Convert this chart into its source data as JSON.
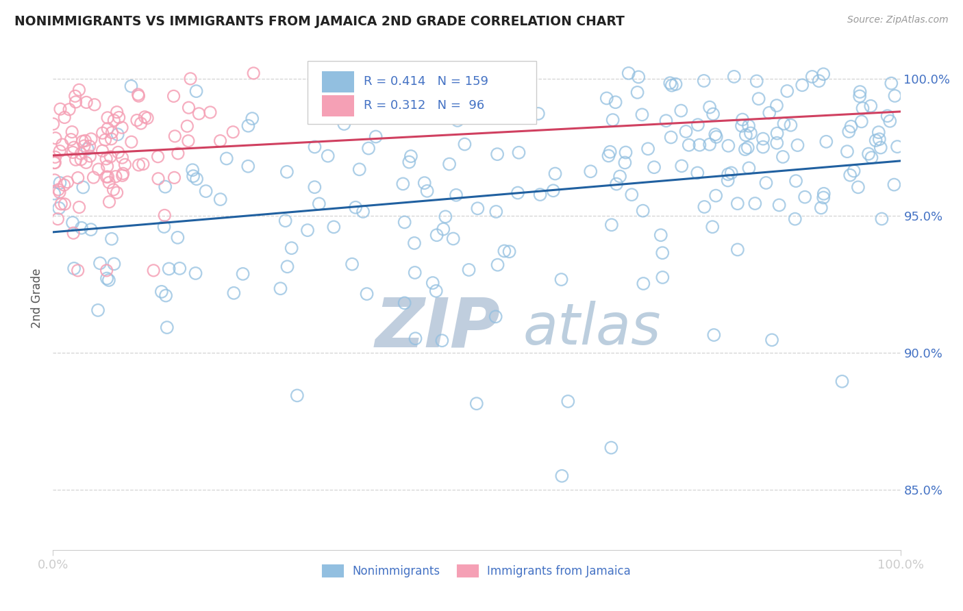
{
  "title": "NONIMMIGRANTS VS IMMIGRANTS FROM JAMAICA 2ND GRADE CORRELATION CHART",
  "source_text": "Source: ZipAtlas.com",
  "ylabel": "2nd Grade",
  "x_tick_labels": [
    "0.0%",
    "100.0%"
  ],
  "y_tick_labels": [
    "85.0%",
    "90.0%",
    "95.0%",
    "100.0%"
  ],
  "y_tick_values": [
    0.85,
    0.9,
    0.95,
    1.0
  ],
  "xlim": [
    0.0,
    1.0
  ],
  "ylim": [
    0.828,
    1.012
  ],
  "R_blue": 0.414,
  "N_blue": 159,
  "R_pink": 0.312,
  "N_pink": 96,
  "blue_color": "#92BFE0",
  "pink_color": "#F5A0B5",
  "blue_line_color": "#2060A0",
  "pink_line_color": "#D04060",
  "watermark_zip_color": "#C0CEDE",
  "watermark_atlas_color": "#BCCEDE",
  "legend_label_blue": "Nonimmigrants",
  "legend_label_pink": "Immigrants from Jamaica",
  "background_color": "#FFFFFF",
  "grid_color": "#C8C8C8",
  "title_color": "#222222",
  "tick_color": "#4472C4",
  "axis_label_color": "#555555",
  "blue_trendline_start_y": 0.944,
  "blue_trendline_end_y": 0.97,
  "pink_trendline_start_y": 0.972,
  "pink_trendline_end_y": 0.988
}
